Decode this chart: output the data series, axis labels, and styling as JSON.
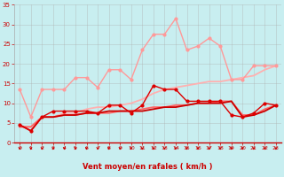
{
  "x": [
    0,
    1,
    2,
    3,
    4,
    5,
    6,
    7,
    8,
    9,
    10,
    11,
    12,
    13,
    14,
    15,
    16,
    17,
    18,
    19,
    20,
    21,
    22,
    23
  ],
  "series": [
    {
      "name": "rafales_light",
      "color": "#FF9999",
      "linewidth": 1.0,
      "marker": "o",
      "markersize": 2.0,
      "values": [
        13.5,
        6.5,
        13.5,
        13.5,
        13.5,
        16.5,
        16.5,
        14.0,
        18.5,
        18.5,
        16.0,
        23.5,
        27.5,
        27.5,
        31.5,
        23.5,
        24.5,
        26.5,
        24.5,
        16.0,
        16.0,
        19.5,
        19.5,
        19.5
      ]
    },
    {
      "name": "moyen_light",
      "color": "#FFB0B0",
      "linewidth": 1.3,
      "marker": null,
      "markersize": 0,
      "values": [
        4.0,
        4.0,
        6.5,
        6.5,
        7.5,
        7.5,
        8.5,
        9.0,
        9.0,
        9.5,
        10.0,
        11.0,
        12.5,
        13.5,
        14.0,
        14.5,
        15.0,
        15.5,
        15.5,
        16.0,
        16.5,
        17.0,
        18.5,
        19.5
      ]
    },
    {
      "name": "moyen_medium",
      "color": "#FF6666",
      "linewidth": 1.3,
      "marker": null,
      "markersize": 0,
      "values": [
        4.0,
        4.0,
        6.5,
        6.5,
        7.0,
        7.0,
        7.5,
        7.5,
        7.5,
        8.0,
        8.0,
        8.5,
        9.0,
        9.0,
        9.5,
        9.5,
        10.0,
        10.0,
        10.5,
        10.5,
        7.0,
        7.0,
        8.5,
        9.5
      ]
    },
    {
      "name": "rafales_dark",
      "color": "#DD0000",
      "linewidth": 1.0,
      "marker": "o",
      "markersize": 2.0,
      "values": [
        4.5,
        3.0,
        6.5,
        8.0,
        8.0,
        8.0,
        8.0,
        7.5,
        9.5,
        9.5,
        7.5,
        9.5,
        14.5,
        13.5,
        13.5,
        10.5,
        10.5,
        10.5,
        10.5,
        7.0,
        6.5,
        7.5,
        10.0,
        9.5
      ]
    },
    {
      "name": "moyen_dark",
      "color": "#CC0000",
      "linewidth": 1.3,
      "marker": null,
      "markersize": 0,
      "values": [
        4.5,
        3.0,
        6.5,
        6.5,
        7.0,
        7.0,
        7.5,
        7.5,
        8.0,
        8.0,
        8.0,
        8.0,
        8.5,
        9.0,
        9.0,
        9.5,
        10.0,
        10.0,
        10.0,
        10.5,
        6.5,
        7.0,
        8.0,
        9.5
      ]
    }
  ],
  "xlabel": "Vent moyen/en rafales ( km/h )",
  "ylim": [
    0,
    35
  ],
  "yticks": [
    0,
    5,
    10,
    15,
    20,
    25,
    30,
    35
  ],
  "xticks": [
    0,
    1,
    2,
    3,
    4,
    5,
    6,
    7,
    8,
    9,
    10,
    11,
    12,
    13,
    14,
    15,
    16,
    17,
    18,
    19,
    20,
    21,
    22,
    23
  ],
  "bg_color": "#C8EEF0",
  "grid_color": "#AAAAAA",
  "text_color": "#CC0000",
  "arrow_color": "#CC0000",
  "spine_color": "#CC0000"
}
